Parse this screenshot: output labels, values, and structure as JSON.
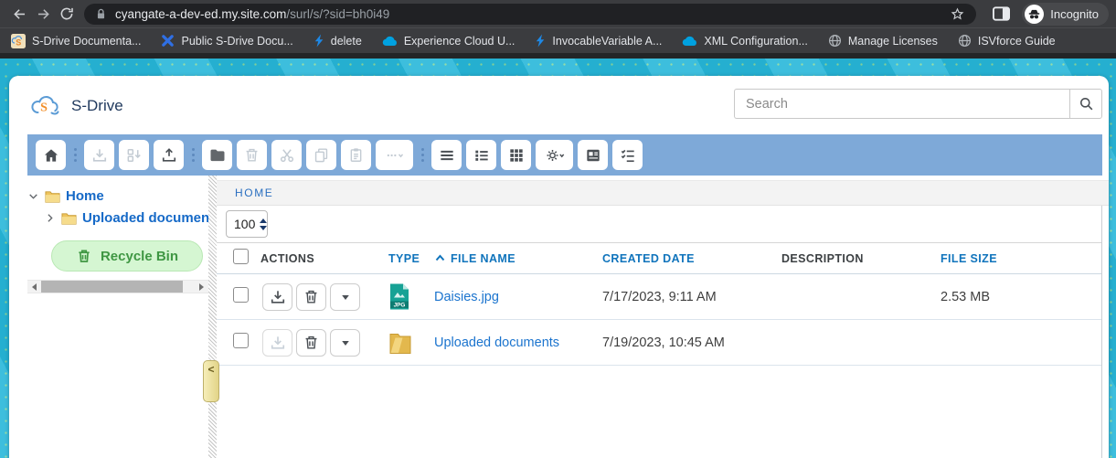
{
  "browser": {
    "url_domain": "cyangate-a-dev-ed.my.site.com",
    "url_path": "/surl/s/?sid=bh0i49",
    "incognito_label": "Incognito",
    "bookmarks": [
      {
        "label": "S-Drive Documenta...",
        "icon": "sdrive"
      },
      {
        "label": "Public S-Drive Docu...",
        "icon": "blue-x"
      },
      {
        "label": "delete",
        "icon": "bolt"
      },
      {
        "label": "Experience Cloud U...",
        "icon": "cloud"
      },
      {
        "label": "InvocableVariable A...",
        "icon": "bolt"
      },
      {
        "label": "XML Configuration...",
        "icon": "cloud"
      },
      {
        "label": "Manage Licenses",
        "icon": "globe"
      },
      {
        "label": "ISVforce Guide",
        "icon": "globe"
      }
    ]
  },
  "app": {
    "title": "S-Drive",
    "search_placeholder": "Search"
  },
  "toolbar": {
    "buttons": [
      {
        "name": "home",
        "enabled": true
      },
      {
        "sep": true
      },
      {
        "name": "download",
        "enabled": false
      },
      {
        "name": "multi-download",
        "enabled": false
      },
      {
        "name": "upload",
        "enabled": true
      },
      {
        "sep": true
      },
      {
        "name": "new-folder",
        "enabled": true
      },
      {
        "name": "delete",
        "enabled": false
      },
      {
        "name": "cut",
        "enabled": false
      },
      {
        "name": "copy",
        "enabled": false
      },
      {
        "name": "paste",
        "enabled": false
      },
      {
        "name": "more-actions",
        "enabled": false,
        "wide": true
      },
      {
        "sep": true
      },
      {
        "name": "list-view",
        "enabled": true
      },
      {
        "name": "detail-view",
        "enabled": true
      },
      {
        "name": "grid-view",
        "enabled": true
      },
      {
        "name": "settings",
        "enabled": true,
        "wide": true
      },
      {
        "name": "item-detail",
        "enabled": true
      },
      {
        "name": "select-mode",
        "enabled": true
      }
    ]
  },
  "tree": {
    "home_label": "Home",
    "uploaded_label": "Uploaded documents",
    "recycle_label": "Recycle Bin"
  },
  "breadcrumb": "HOME",
  "page_size": "100",
  "table": {
    "columns": [
      {
        "label": "ACTIONS",
        "sortable": false
      },
      {
        "label": "TYPE",
        "sortable": true
      },
      {
        "label": "FILE NAME",
        "sortable": true,
        "sorted": "asc"
      },
      {
        "label": "CREATED DATE",
        "sortable": true
      },
      {
        "label": "DESCRIPTION",
        "sortable": false
      },
      {
        "label": "FILE SIZE",
        "sortable": true
      }
    ],
    "rows": [
      {
        "type": "jpg",
        "name": "Daisies.jpg",
        "created": "7/17/2023, 9:11 AM",
        "description": "",
        "size": "2.53 MB",
        "can_download": true
      },
      {
        "type": "folder",
        "name": "Uploaded documents",
        "created": "7/19/2023, 10:45 AM",
        "description": "",
        "size": "",
        "can_download": false
      }
    ]
  },
  "colors": {
    "toolbar_blue": "#7ea9d8",
    "background_cyan": "#27b7d9",
    "link_blue": "#1b74ce",
    "header_blue": "#1074bc",
    "tree_blue": "#1569c7",
    "recycle_green": "#3f9743",
    "folder_yellow": "#eec35c",
    "jpg_teal": "#17a295"
  }
}
